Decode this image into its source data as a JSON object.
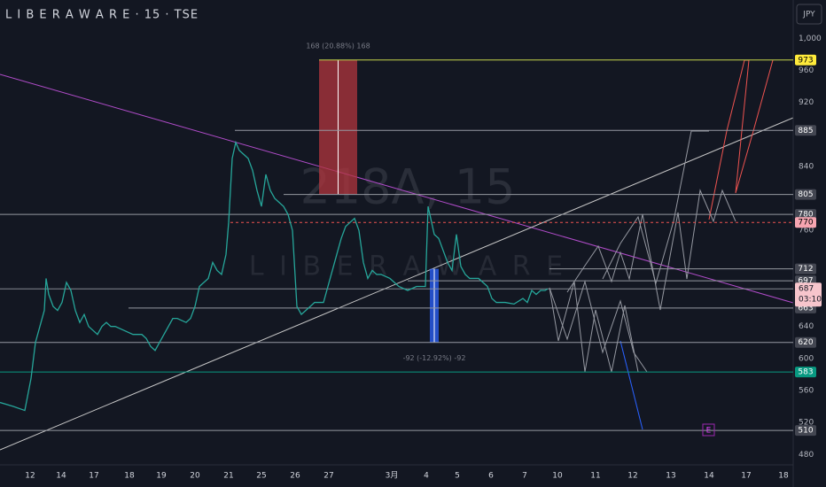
{
  "chart_data": {
    "type": "line",
    "title": "L I B E R A W A R E · 15 · TSE",
    "currency": "JPY",
    "watermark": [
      "218A, 15",
      "L I B E R A W A R E"
    ],
    "xlim": [
      0,
      895
    ],
    "ylim": [
      467,
      1048
    ],
    "xticks": [
      {
        "value": 34,
        "label": "12"
      },
      {
        "value": 69,
        "label": "14"
      },
      {
        "value": 106,
        "label": "17"
      },
      {
        "value": 146,
        "label": "18"
      },
      {
        "value": 182,
        "label": "19"
      },
      {
        "value": 220,
        "label": "20"
      },
      {
        "value": 258,
        "label": "21"
      },
      {
        "value": 295,
        "label": "25"
      },
      {
        "value": 333,
        "label": "26"
      },
      {
        "value": 371,
        "label": "27"
      },
      {
        "value": 442,
        "label": "3月"
      },
      {
        "value": 481,
        "label": "4"
      },
      {
        "value": 516,
        "label": "5"
      },
      {
        "value": 554,
        "label": "6"
      },
      {
        "value": 592,
        "label": "7"
      },
      {
        "value": 629,
        "label": "10"
      },
      {
        "value": 672,
        "label": "11"
      },
      {
        "value": 714,
        "label": "12"
      },
      {
        "value": 757,
        "label": "13"
      },
      {
        "value": 800,
        "label": "14"
      },
      {
        "value": 842,
        "label": "17"
      },
      {
        "value": 884,
        "label": "18"
      }
    ],
    "yticks": [
      {
        "value": 1000,
        "label": "1,000"
      },
      960,
      920,
      840,
      760,
      640,
      600,
      560,
      520,
      480
    ],
    "series": [
      {
        "name": "218A",
        "color": "#26a69a",
        "x": [
          0,
          15,
          28,
          35,
          40,
          45,
          50,
          52,
          55,
          60,
          65,
          70,
          75,
          80,
          85,
          90,
          95,
          100,
          105,
          110,
          115,
          120,
          125,
          130,
          140,
          150,
          160,
          165,
          170,
          175,
          180,
          185,
          190,
          195,
          200,
          210,
          215,
          220,
          225,
          230,
          235,
          240,
          245,
          250,
          255,
          258,
          262,
          266,
          270,
          275,
          280,
          285,
          290,
          295,
          300,
          305,
          310,
          315,
          320,
          325,
          330,
          335,
          340,
          345,
          350,
          355,
          360,
          365,
          370,
          375,
          380,
          385,
          390,
          395,
          400,
          405,
          410,
          415,
          420,
          425,
          430,
          440,
          450,
          460,
          470,
          480,
          483,
          486,
          490,
          495,
          500,
          505,
          510,
          515,
          520,
          525,
          530,
          540,
          545,
          550,
          555,
          560,
          570,
          580,
          590,
          595,
          600,
          605,
          610,
          615,
          618
        ],
        "values": [
          545,
          540,
          535,
          575,
          620,
          640,
          660,
          700,
          680,
          665,
          660,
          670,
          695,
          685,
          660,
          645,
          655,
          640,
          635,
          630,
          640,
          645,
          640,
          640,
          635,
          630,
          630,
          625,
          615,
          610,
          620,
          630,
          640,
          650,
          650,
          645,
          650,
          665,
          690,
          695,
          700,
          720,
          710,
          705,
          730,
          770,
          850,
          870,
          860,
          855,
          850,
          835,
          810,
          790,
          830,
          810,
          800,
          795,
          790,
          780,
          760,
          665,
          655,
          660,
          665,
          670,
          670,
          670,
          690,
          710,
          730,
          750,
          765,
          770,
          775,
          760,
          720,
          700,
          710,
          705,
          705,
          700,
          690,
          685,
          690,
          690,
          790,
          775,
          755,
          750,
          735,
          720,
          710,
          755,
          715,
          705,
          700,
          700,
          695,
          690,
          675,
          670,
          670,
          668,
          675,
          670,
          685,
          680,
          685,
          685,
          687
        ]
      }
    ],
    "levels": [
      {
        "value": 973,
        "start": 360,
        "color": "#c6d64b",
        "bg": "#ffeb3b",
        "fg": "#000"
      },
      {
        "value": 885,
        "start": 265,
        "color": "#9598a1",
        "bg": "#434651",
        "fg": "#fff"
      },
      {
        "value": 805,
        "start": 320,
        "color": "#9598a1",
        "bg": "#434651",
        "fg": "#fff"
      },
      {
        "value": 780,
        "start": 0,
        "color": "#9598a1",
        "bg": "#434651",
        "fg": "#fff"
      },
      {
        "value": 770,
        "start": 260,
        "color": "#ef5350",
        "bg": "#f7a5b1",
        "fg": "#000"
      },
      {
        "value": 712,
        "start": 620,
        "color": "#9598a1",
        "bg": "#434651",
        "fg": "#fff"
      },
      {
        "value": 697,
        "start": 460,
        "color": "#9598a1",
        "bg": "#434651",
        "fg": "#fff"
      },
      {
        "value": 663,
        "start": 145,
        "color": "#9598a1",
        "bg": "#434651",
        "fg": "#fff"
      },
      {
        "value": 620,
        "start": 0,
        "color": "#9598a1",
        "bg": "#434651",
        "fg": "#fff"
      },
      {
        "value": 583,
        "start": 0,
        "color": "#089981",
        "bg": "#089981",
        "fg": "#fff"
      },
      {
        "value": 510,
        "start": 0,
        "color": "#9598a1",
        "bg": "#434651",
        "fg": "#fff"
      }
    ],
    "current": {
      "value": 687,
      "countdown": "03:10"
    },
    "measures": [
      {
        "label": "168 (20.88%) 168",
        "x0": 360,
        "x1": 403,
        "from": 805,
        "to": 973,
        "color": "#b2353d"
      },
      {
        "label": "-92 (-12.92%) -92",
        "x0": 485,
        "x1": 495,
        "from": 712,
        "to": 620,
        "color": "#2962ff"
      }
    ],
    "event": "E"
  }
}
